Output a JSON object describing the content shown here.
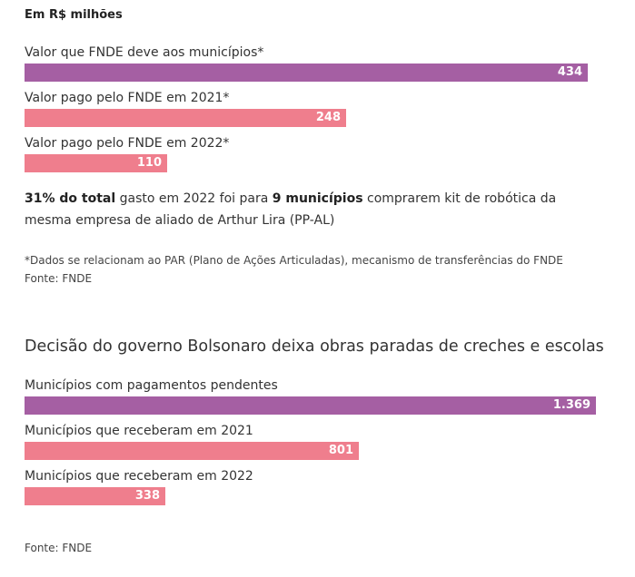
{
  "chart_data": [
    {
      "type": "bar",
      "orientation": "horizontal",
      "subtitle": "Em R$ milhões",
      "categories": [
        "Valor que FNDE deve aos municípios*",
        "Valor pago pelo FNDE em 2021*",
        "Valor pago pelo FNDE em 2022*"
      ],
      "values": [
        434,
        248,
        110
      ],
      "value_labels": [
        "434",
        "248",
        "110"
      ],
      "colors": [
        "#a55fa3",
        "#ef7e8d",
        "#ef7e8d"
      ],
      "xlim": [
        0,
        434
      ]
    },
    {
      "type": "bar",
      "orientation": "horizontal",
      "title": "Decisão do governo Bolsonaro deixa obras paradas de creches e escolas",
      "categories": [
        "Municípios com pagamentos pendentes",
        "Municípios que receberam em 2021",
        "Municípios que receberam em 2022"
      ],
      "values": [
        1369,
        801,
        338
      ],
      "value_labels": [
        "1.369",
        "801",
        "338"
      ],
      "colors": [
        "#a55fa3",
        "#ef7e8d",
        "#ef7e8d"
      ],
      "xlim": [
        0,
        1369
      ]
    }
  ],
  "note": {
    "bold1": "31% do total",
    "text1": " gasto em 2022 foi para ",
    "bold2": "9 municípios",
    "text2": " comprarem kit de robótica da mesma empresa de aliado de Arthur Lira (PP-AL)"
  },
  "footnote": "*Dados se relacionam ao PAR (Plano de Ações Articuladas), mecanismo de transferências do FNDE Fonte: FNDE",
  "source": "Fonte: FNDE"
}
